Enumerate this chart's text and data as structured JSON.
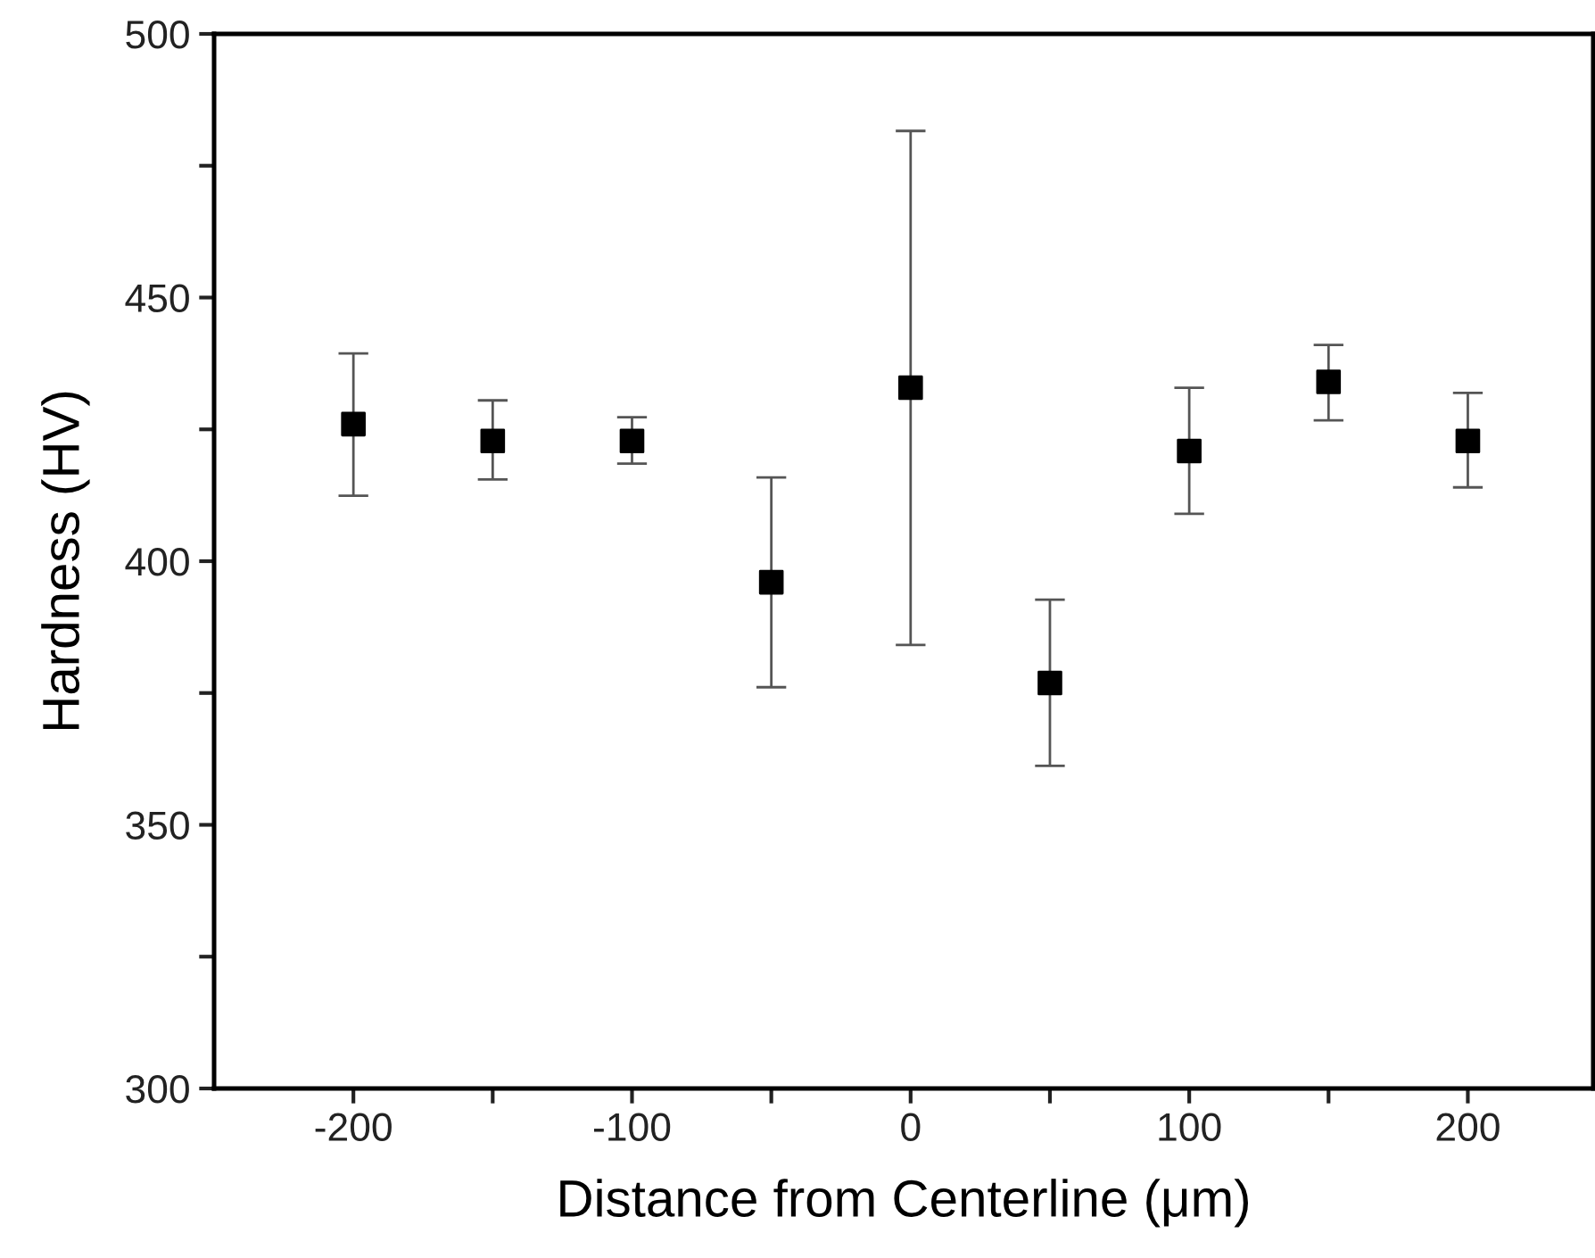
{
  "chart_data": {
    "type": "scatter",
    "xlabel": "Distance from Centerline (μm)",
    "ylabel": "Hardness (HV)",
    "x": [
      -200,
      -150,
      -100,
      -50,
      0,
      50,
      100,
      150,
      200
    ],
    "values": [
      426,
      422.8,
      422.8,
      396,
      432.9,
      376.9,
      420.9,
      434,
      422.8
    ],
    "errors": [
      [
        412.4,
        439.4
      ],
      [
        415.5,
        430.5
      ],
      [
        418.5,
        427.3
      ],
      [
        376.1,
        415.9
      ],
      [
        384.1,
        481.6
      ],
      [
        361.2,
        392.7
      ],
      [
        409,
        432.9
      ],
      [
        426.7,
        441
      ],
      [
        414,
        431.9
      ]
    ],
    "color": "#000000",
    "marker": "square",
    "grid": false,
    "xlim": [
      -250,
      245
    ],
    "ylim": [
      300,
      500
    ],
    "xticks": [
      -200,
      {
        "value": -150,
        "label": null
      },
      -100,
      {
        "value": -50,
        "label": null
      },
      0,
      {
        "value": 50,
        "label": null
      },
      100,
      {
        "value": 150,
        "label": null
      },
      200
    ],
    "yticks": [
      300,
      {
        "value": 325,
        "label": null
      },
      350,
      {
        "value": 375,
        "label": null
      },
      400,
      {
        "value": 425,
        "label": null
      },
      450,
      {
        "value": 475,
        "label": null
      },
      500
    ]
  }
}
